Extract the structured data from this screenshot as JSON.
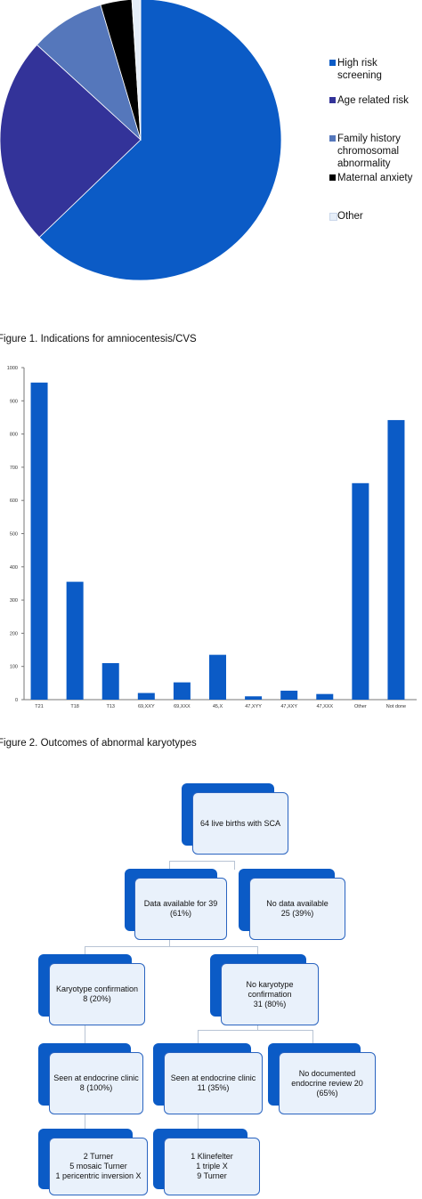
{
  "figure1_caption": "Figure 1. Indications for amniocentesis/CVS",
  "figure2_caption": "Figure 2. Outcomes of abnormal karyotypes",
  "chart_data": [
    {
      "type": "pie",
      "title": "",
      "legend_position": "right",
      "slices": [
        {
          "label": "High risk screening",
          "value": 62.8,
          "color": "#0b5bc6"
        },
        {
          "label": "Age related risk",
          "value": 24.0,
          "color": "#333399"
        },
        {
          "label": "Family history chromosomal abnormality",
          "value": 8.6,
          "color": "#5577bb"
        },
        {
          "label": "Maternal anxiety",
          "value": 3.6,
          "color": "#000000"
        },
        {
          "label": "Other",
          "value": 1.0,
          "color": "#e6eef8"
        }
      ]
    },
    {
      "type": "bar",
      "title": "",
      "xlabel": "",
      "ylabel": "",
      "ylim": [
        0,
        1000
      ],
      "yticks": [
        "0",
        "100",
        "200",
        "300",
        "400",
        "500",
        "600",
        "700",
        "800",
        "900",
        "1000"
      ],
      "grid": false,
      "bar_color": "#0b5bc6",
      "categories": [
        "T21",
        "T18",
        "T13",
        "69,XXY",
        "69,XXX",
        "45,X",
        "47,XYY",
        "47,XXY",
        "47,XXX",
        "Other",
        "Not done"
      ],
      "values": [
        955,
        355,
        110,
        20,
        52,
        135,
        10,
        27,
        17,
        652,
        842
      ]
    }
  ],
  "flowchart": {
    "nodes": [
      {
        "id": "n1",
        "lines": [
          "64 live births with SCA"
        ]
      },
      {
        "id": "n2",
        "lines": [
          "Data available for 39",
          "(61%)"
        ]
      },
      {
        "id": "n3",
        "lines": [
          "No data available",
          "25 (39%)"
        ]
      },
      {
        "id": "n4",
        "lines": [
          "Karyotype confirmation",
          "8 (20%)"
        ]
      },
      {
        "id": "n5",
        "lines": [
          "No karyotype",
          "confirmation",
          "31 (80%)"
        ]
      },
      {
        "id": "n6",
        "lines": [
          "Seen at endocrine clinic",
          "8 (100%)"
        ]
      },
      {
        "id": "n7",
        "lines": [
          "Seen at endocrine clinic",
          "11 (35%)"
        ]
      },
      {
        "id": "n8",
        "lines": [
          "No documented",
          "endocrine review 20",
          "(65%)"
        ]
      },
      {
        "id": "n9",
        "lines": [
          "2  Turner",
          "5  mosaic Turner",
          "1 pericentric inversion X"
        ]
      },
      {
        "id": "n10",
        "lines": [
          "1 Klinefelter",
          "1 triple X",
          "9 Turner"
        ]
      }
    ]
  }
}
